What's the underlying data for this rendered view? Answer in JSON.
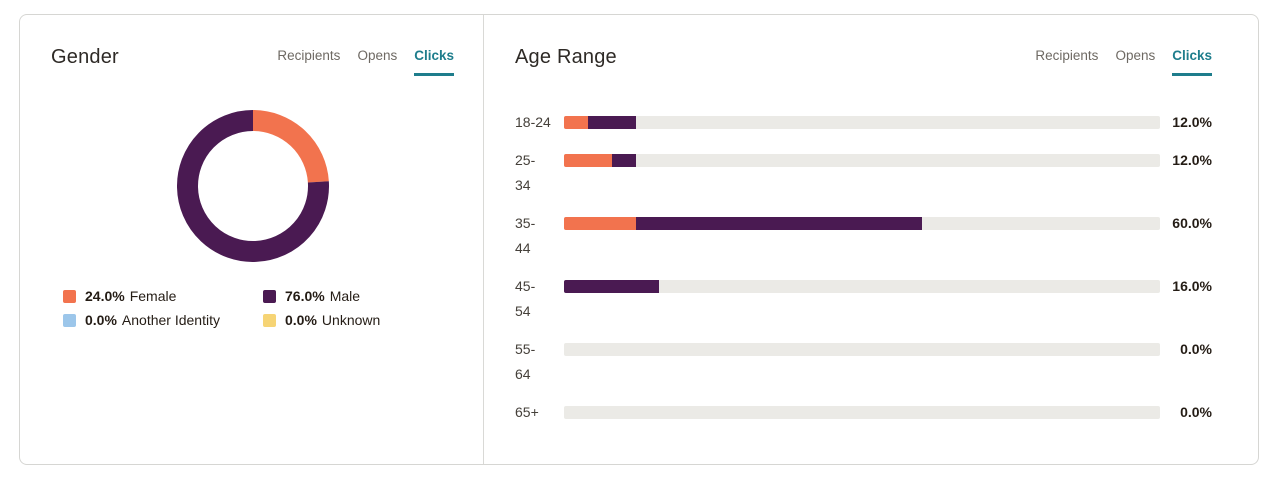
{
  "colors": {
    "accent_teal": "#1e7d8c",
    "female_orange": "#f2734e",
    "male_purple": "#4a1a52",
    "another_identity_blue": "#9cc6ea",
    "unknown_yellow": "#f6d475",
    "bar_track": "#ebeae6"
  },
  "gender_panel": {
    "title": "Gender",
    "tabs": [
      {
        "label": "Recipients",
        "active": false
      },
      {
        "label": "Opens",
        "active": false
      },
      {
        "label": "Clicks",
        "active": true
      }
    ],
    "legend": [
      {
        "value": "24.0%",
        "label": "Female",
        "color": "#f2734e"
      },
      {
        "value": "76.0%",
        "label": "Male",
        "color": "#4a1a52"
      },
      {
        "value": "0.0%",
        "label": "Another Identity",
        "color": "#9cc6ea"
      },
      {
        "value": "0.0%",
        "label": "Unknown",
        "color": "#f6d475"
      }
    ]
  },
  "age_panel": {
    "title": "Age Range",
    "tabs": [
      {
        "label": "Recipients",
        "active": false
      },
      {
        "label": "Opens",
        "active": false
      },
      {
        "label": "Clicks",
        "active": true
      }
    ]
  },
  "chart_data": [
    {
      "type": "pie",
      "variant": "donut",
      "title": "Gender",
      "labels": [
        "Female",
        "Male",
        "Another Identity",
        "Unknown"
      ],
      "values": [
        24.0,
        76.0,
        0.0,
        0.0
      ],
      "display_values": [
        "24.0%",
        "76.0%",
        "0.0%",
        "0.0%"
      ],
      "colors": [
        "#f2734e",
        "#4a1a52",
        "#9cc6ea",
        "#f6d475"
      ],
      "legend_position": "below"
    },
    {
      "type": "bar",
      "orientation": "horizontal",
      "title": "Age Range",
      "categories": [
        "18-24",
        "25-34",
        "35-44",
        "45-54",
        "55-64",
        "65+"
      ],
      "category_lines": [
        [
          "18-24"
        ],
        [
          "25-",
          "34"
        ],
        [
          "35-",
          "44"
        ],
        [
          "45-",
          "54"
        ],
        [
          "55-",
          "64"
        ],
        [
          "65+"
        ]
      ],
      "totals": [
        "12.0%",
        "12.0%",
        "60.0%",
        "16.0%",
        "0.0%",
        "0.0%"
      ],
      "total_values": [
        12.0,
        12.0,
        60.0,
        16.0,
        0.0,
        0.0
      ],
      "series": [
        {
          "name": "Female",
          "color": "#f2734e",
          "values": [
            4,
            8,
            12,
            0,
            0,
            0
          ]
        },
        {
          "name": "Male",
          "color": "#4a1a52",
          "values": [
            8,
            4,
            48,
            16,
            0,
            0
          ]
        }
      ],
      "xlim": [
        0,
        100
      ],
      "track_color": "#ebeae6"
    }
  ]
}
